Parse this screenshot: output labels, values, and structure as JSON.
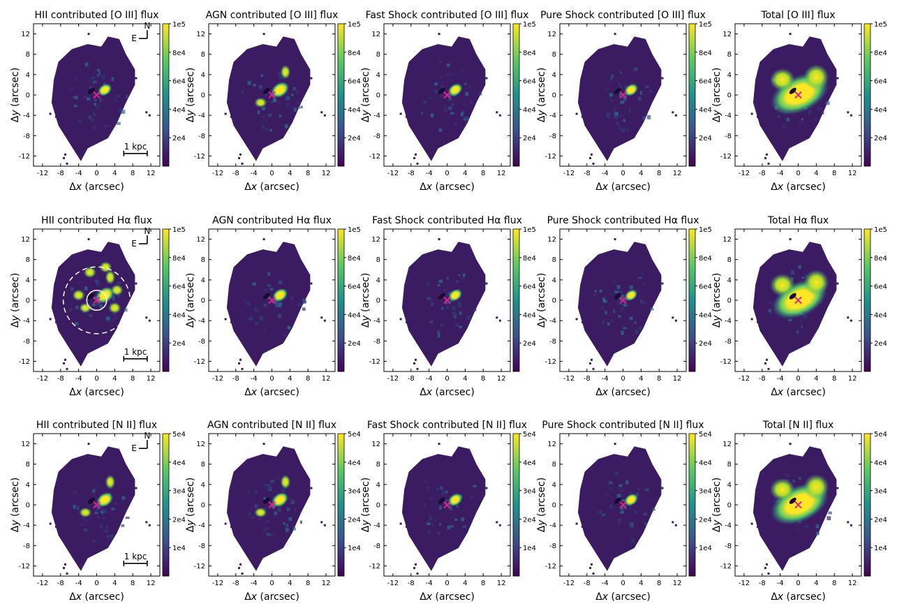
{
  "figure": {
    "xtick_labels": [
      "-12",
      "-8",
      "-4",
      "0",
      "4",
      "8",
      "12"
    ],
    "ytick_labels": [
      "12",
      "8",
      "4",
      "0",
      "-4",
      "-8",
      "-12"
    ],
    "xlabel_prefix": "Δ",
    "xlabel_var": "x",
    "xlabel_suffix": " (arcsec)",
    "ylabel_prefix": "Δ",
    "ylabel_var": "y",
    "ylabel_suffix": " (arcsec)",
    "compass_n": "N",
    "compass_e": "E",
    "scalebar_label": "1 kpc",
    "colors": {
      "background_map": "#3b1c63",
      "nucleus_marker": "#e0218a",
      "viridis": [
        "#440154",
        "#3b528b",
        "#21918c",
        "#5ec962",
        "#fde725"
      ]
    }
  },
  "chart_data": [
    {
      "type": "heatmap",
      "row": 0,
      "col": 0,
      "title": "HII contributed [O III] flux",
      "color_ticks": [
        "1e5",
        "8e4",
        "6e4",
        "4e4",
        "2e4"
      ],
      "vmax": 100000,
      "color_tick_values": [
        100000,
        80000,
        60000,
        40000,
        20000
      ],
      "xlim": [
        -14,
        14
      ],
      "ylim": [
        -14,
        14
      ],
      "intensity": 0.25,
      "compass": true,
      "scalebar": true,
      "circles": false
    },
    {
      "type": "heatmap",
      "row": 0,
      "col": 1,
      "title": "AGN contributed [O III] flux",
      "color_ticks": [
        "1e5",
        "8e4",
        "6e4",
        "4e4",
        "2e4"
      ],
      "vmax": 100000,
      "color_tick_values": [
        100000,
        80000,
        60000,
        40000,
        20000
      ],
      "xlim": [
        -14,
        14
      ],
      "ylim": [
        -14,
        14
      ],
      "intensity": 0.55,
      "compass": false,
      "scalebar": false,
      "circles": false
    },
    {
      "type": "heatmap",
      "row": 0,
      "col": 2,
      "title": "Fast Shock contributed [O III] flux",
      "color_ticks": [
        "1e5",
        "8e4",
        "6e4",
        "4e4",
        "2e4"
      ],
      "vmax": 100000,
      "color_tick_values": [
        100000,
        80000,
        60000,
        40000,
        20000
      ],
      "xlim": [
        -14,
        14
      ],
      "ylim": [
        -14,
        14
      ],
      "intensity": 0.3,
      "compass": false,
      "scalebar": false,
      "circles": false
    },
    {
      "type": "heatmap",
      "row": 0,
      "col": 3,
      "title": "Pure Shock contributed [O III] flux",
      "color_ticks": [
        "1e5",
        "8e4",
        "6e4",
        "4e4",
        "2e4"
      ],
      "vmax": 100000,
      "color_tick_values": [
        100000,
        80000,
        60000,
        40000,
        20000
      ],
      "xlim": [
        -14,
        14
      ],
      "ylim": [
        -14,
        14
      ],
      "intensity": 0.25,
      "compass": false,
      "scalebar": false,
      "circles": false
    },
    {
      "type": "heatmap",
      "row": 0,
      "col": 4,
      "title": "Total [O III] flux",
      "color_ticks": [
        "1e5",
        "8e4",
        "6e4",
        "4e4",
        "2e4"
      ],
      "vmax": 100000,
      "color_tick_values": [
        100000,
        80000,
        60000,
        40000,
        20000
      ],
      "xlim": [
        -14,
        14
      ],
      "ylim": [
        -14,
        14
      ],
      "intensity": 0.9,
      "compass": false,
      "scalebar": false,
      "circles": false
    },
    {
      "type": "heatmap",
      "row": 1,
      "col": 0,
      "title": "HII contributed Hα flux",
      "color_ticks": [
        "1e5",
        "8e4",
        "6e4",
        "4e4",
        "2e4"
      ],
      "vmax": 100000,
      "color_tick_values": [
        100000,
        80000,
        60000,
        40000,
        20000
      ],
      "xlim": [
        -14,
        14
      ],
      "ylim": [
        -14,
        14
      ],
      "intensity": 0.6,
      "compass": true,
      "scalebar": true,
      "circles": true
    },
    {
      "type": "heatmap",
      "row": 1,
      "col": 1,
      "title": "AGN contributed Hα flux",
      "color_ticks": [
        "1e5",
        "8e4",
        "6e4",
        "4e4",
        "2e4"
      ],
      "vmax": 100000,
      "color_tick_values": [
        100000,
        80000,
        60000,
        40000,
        20000
      ],
      "xlim": [
        -14,
        14
      ],
      "ylim": [
        -14,
        14
      ],
      "intensity": 0.35,
      "compass": false,
      "scalebar": false,
      "circles": false
    },
    {
      "type": "heatmap",
      "row": 1,
      "col": 2,
      "title": "Fast Shock contributed Hα flux",
      "color_ticks": [
        "1e5",
        "8e4",
        "6e4",
        "4e4",
        "2e4"
      ],
      "vmax": 100000,
      "color_tick_values": [
        100000,
        80000,
        60000,
        40000,
        20000
      ],
      "xlim": [
        -14,
        14
      ],
      "ylim": [
        -14,
        14
      ],
      "intensity": 0.25,
      "compass": false,
      "scalebar": false,
      "circles": false
    },
    {
      "type": "heatmap",
      "row": 1,
      "col": 3,
      "title": "Pure Shock contributed Hα flux",
      "color_ticks": [
        "1e5",
        "8e4",
        "6e4",
        "4e4",
        "2e4"
      ],
      "vmax": 100000,
      "color_tick_values": [
        100000,
        80000,
        60000,
        40000,
        20000
      ],
      "xlim": [
        -14,
        14
      ],
      "ylim": [
        -14,
        14
      ],
      "intensity": 0.15,
      "compass": false,
      "scalebar": false,
      "circles": false
    },
    {
      "type": "heatmap",
      "row": 1,
      "col": 4,
      "title": "Total Hα flux",
      "color_ticks": [
        "1e5",
        "8e4",
        "6e4",
        "4e4",
        "2e4"
      ],
      "vmax": 100000,
      "color_tick_values": [
        100000,
        80000,
        60000,
        40000,
        20000
      ],
      "xlim": [
        -14,
        14
      ],
      "ylim": [
        -14,
        14
      ],
      "intensity": 0.85,
      "compass": false,
      "scalebar": false,
      "circles": false
    },
    {
      "type": "heatmap",
      "row": 2,
      "col": 0,
      "title": "HII contributed [N II] flux",
      "color_ticks": [
        "5e4",
        "4e4",
        "3e4",
        "2e4",
        "1e4"
      ],
      "vmax": 50000,
      "color_tick_values": [
        50000,
        40000,
        30000,
        20000,
        10000
      ],
      "xlim": [
        -14,
        14
      ],
      "ylim": [
        -14,
        14
      ],
      "intensity": 0.45,
      "compass": true,
      "scalebar": true,
      "circles": false
    },
    {
      "type": "heatmap",
      "row": 2,
      "col": 1,
      "title": "AGN contributed [N II] flux",
      "color_ticks": [
        "5e4",
        "4e4",
        "3e4",
        "2e4",
        "1e4"
      ],
      "vmax": 50000,
      "color_tick_values": [
        50000,
        40000,
        30000,
        20000,
        10000
      ],
      "xlim": [
        -14,
        14
      ],
      "ylim": [
        -14,
        14
      ],
      "intensity": 0.45,
      "compass": false,
      "scalebar": false,
      "circles": false
    },
    {
      "type": "heatmap",
      "row": 2,
      "col": 2,
      "title": "Fast Shock contributed [N II] flux",
      "color_ticks": [
        "5e4",
        "4e4",
        "3e4",
        "2e4",
        "1e4"
      ],
      "vmax": 50000,
      "color_tick_values": [
        50000,
        40000,
        30000,
        20000,
        10000
      ],
      "xlim": [
        -14,
        14
      ],
      "ylim": [
        -14,
        14
      ],
      "intensity": 0.3,
      "compass": false,
      "scalebar": false,
      "circles": false
    },
    {
      "type": "heatmap",
      "row": 2,
      "col": 3,
      "title": "Pure Shock contributed [N II] flux",
      "color_ticks": [
        "5e4",
        "4e4",
        "3e4",
        "2e4",
        "1e4"
      ],
      "vmax": 50000,
      "color_tick_values": [
        50000,
        40000,
        30000,
        20000,
        10000
      ],
      "xlim": [
        -14,
        14
      ],
      "ylim": [
        -14,
        14
      ],
      "intensity": 0.25,
      "compass": false,
      "scalebar": false,
      "circles": false
    },
    {
      "type": "heatmap",
      "row": 2,
      "col": 4,
      "title": "Total [N II] flux",
      "color_ticks": [
        "5e4",
        "4e4",
        "3e4",
        "2e4",
        "1e4"
      ],
      "vmax": 50000,
      "color_tick_values": [
        50000,
        40000,
        30000,
        20000,
        10000
      ],
      "xlim": [
        -14,
        14
      ],
      "ylim": [
        -14,
        14
      ],
      "intensity": 0.9,
      "compass": false,
      "scalebar": false,
      "circles": false
    }
  ]
}
